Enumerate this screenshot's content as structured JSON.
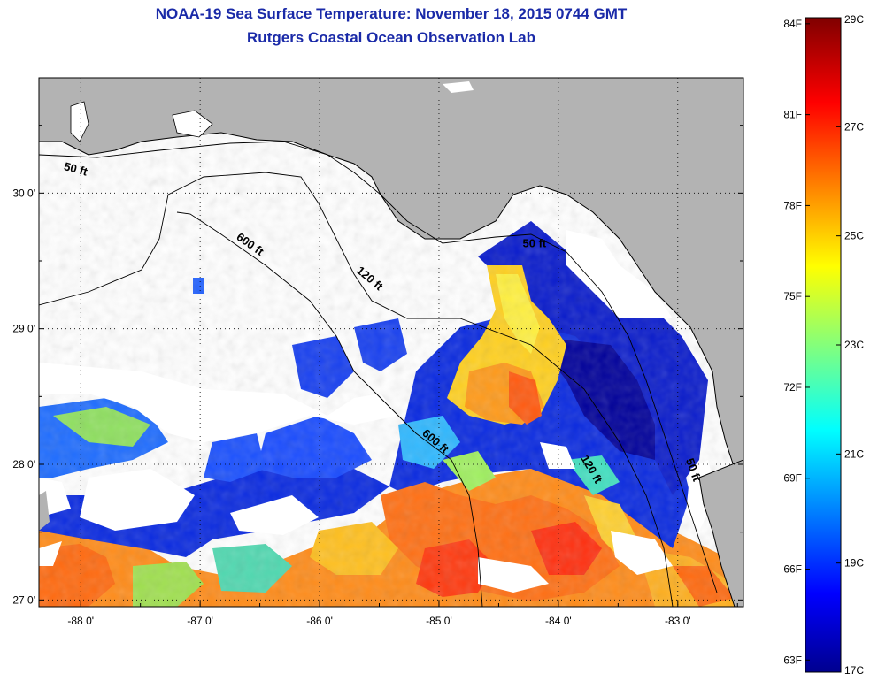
{
  "header": {
    "title": "NOAA-19 Sea Surface Temperature:  November 18, 2015 0744 GMT",
    "subtitle": "Rutgers Coastal Ocean Observation Lab"
  },
  "map": {
    "lon_range": [
      -88.35,
      -82.45
    ],
    "lat_range": [
      26.95,
      30.85
    ],
    "lon_ticks": [
      {
        "value": -88,
        "label": "-88 0'"
      },
      {
        "value": -87,
        "label": "-87 0'"
      },
      {
        "value": -86,
        "label": "-86 0'"
      },
      {
        "value": -85,
        "label": "-85 0'"
      },
      {
        "value": -84,
        "label": "-84 0'"
      },
      {
        "value": -83,
        "label": "-83 0'"
      }
    ],
    "lat_ticks": [
      {
        "value": 30,
        "label": "30 0'"
      },
      {
        "value": 29,
        "label": "29 0'"
      },
      {
        "value": 28,
        "label": "28 0'"
      },
      {
        "value": 27,
        "label": "27 0'"
      }
    ],
    "contour_labels": [
      {
        "text": "50 ft",
        "lon": -88.05,
        "lat": 30.15
      },
      {
        "text": "600 ft",
        "lon": -86.6,
        "lat": 29.6
      },
      {
        "text": "120 ft",
        "lon": -85.6,
        "lat": 29.35
      },
      {
        "text": "50 ft",
        "lon": -84.2,
        "lat": 29.6
      },
      {
        "text": "600 ft",
        "lon": -85.05,
        "lat": 28.15
      },
      {
        "text": "120 ft",
        "lon": -83.75,
        "lat": 27.95
      },
      {
        "text": "50 ft",
        "lon": -82.9,
        "lat": 27.95
      }
    ],
    "colors": {
      "land": "#b3b3b3",
      "no_data": "#ffffff",
      "coastline": "#000000"
    }
  },
  "colorbar": {
    "min_c": 17,
    "max_c": 29,
    "celsius_labels": [
      {
        "value": 29,
        "label": "29C"
      },
      {
        "value": 27,
        "label": "27C"
      },
      {
        "value": 25,
        "label": "25C"
      },
      {
        "value": 23,
        "label": "23C"
      },
      {
        "value": 21,
        "label": "21C"
      },
      {
        "value": 19,
        "label": "19C"
      },
      {
        "value": 17,
        "label": "17C"
      }
    ],
    "fahrenheit_labels": [
      {
        "value": 84,
        "label": "84F"
      },
      {
        "value": 81,
        "label": "81F"
      },
      {
        "value": 78,
        "label": "78F"
      },
      {
        "value": 75,
        "label": "75F"
      },
      {
        "value": 72,
        "label": "72F"
      },
      {
        "value": 69,
        "label": "69F"
      },
      {
        "value": 66,
        "label": "66F"
      },
      {
        "value": 63,
        "label": "63F"
      }
    ]
  }
}
